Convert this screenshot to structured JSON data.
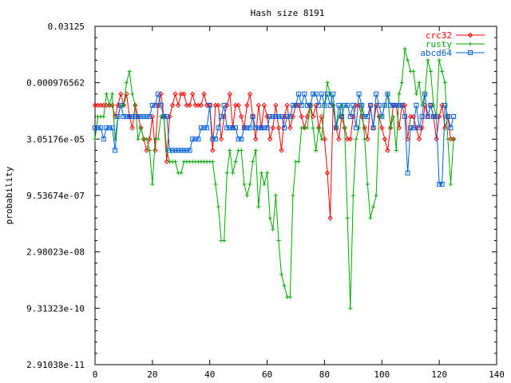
{
  "chart_data": {
    "type": "line",
    "title": "Hash size 8191",
    "xlabel": "",
    "ylabel": "probability",
    "xlim": [
      0,
      140
    ],
    "x_ticks": [
      "0",
      "20",
      "40",
      "60",
      "80",
      "100",
      "120",
      "140"
    ],
    "ylim_log2": [
      -35,
      -5
    ],
    "y_ticks": [
      {
        "label": "0.03125",
        "log2": -5
      },
      {
        "label": "0.000976562",
        "log2": -10
      },
      {
        "label": "3.05176e-05",
        "log2": -15
      },
      {
        "label": "9.53674e-07",
        "log2": -20
      },
      {
        "label": "2.98023e-08",
        "log2": -25
      },
      {
        "label": "9.31323e-10",
        "log2": -30
      },
      {
        "label": "2.91038e-11",
        "log2": -35
      }
    ],
    "y_scale": "log",
    "legend_position": "top-right",
    "grid": false,
    "series": [
      {
        "name": "crc32",
        "color": "#ff0000",
        "marker": "diamond",
        "x": [
          0,
          1,
          2,
          3,
          4,
          5,
          6,
          7,
          8,
          9,
          10,
          11,
          12,
          13,
          14,
          15,
          16,
          17,
          18,
          19,
          20,
          21,
          22,
          23,
          24,
          25,
          26,
          27,
          28,
          29,
          30,
          31,
          32,
          33,
          34,
          35,
          36,
          37,
          38,
          39,
          40,
          41,
          42,
          43,
          44,
          45,
          46,
          47,
          48,
          49,
          50,
          51,
          52,
          53,
          54,
          55,
          56,
          57,
          58,
          59,
          60,
          61,
          62,
          63,
          64,
          65,
          66,
          67,
          68,
          69,
          70,
          71,
          72,
          73,
          74,
          75,
          76,
          77,
          78,
          79,
          80,
          81,
          82,
          83,
          84,
          85,
          86,
          87,
          88,
          89,
          90,
          91,
          92,
          93,
          94,
          95,
          96,
          97,
          98,
          99,
          100,
          101,
          102,
          103,
          104,
          105,
          106,
          107,
          108,
          109,
          110,
          111,
          112,
          113,
          114,
          115,
          116,
          117,
          118,
          119,
          120,
          121,
          122,
          123,
          124,
          125
        ],
        "log2": [
          -12,
          -12,
          -12,
          -12,
          -12,
          -12,
          -12,
          -13,
          -12,
          -11,
          -12,
          -11,
          -13,
          -14,
          -12,
          -13,
          -14,
          -15,
          -16,
          -15,
          -13,
          -16,
          -12,
          -11,
          -13,
          -17,
          -13,
          -12,
          -11,
          -12,
          -11,
          -11,
          -12,
          -12,
          -11,
          -12,
          -12,
          -12,
          -11,
          -12,
          -12,
          -16,
          -12,
          -12,
          -15,
          -13,
          -12,
          -11,
          -14,
          -12,
          -12,
          -13,
          -14,
          -12,
          -11,
          -13,
          -15,
          -12,
          -14,
          -12,
          -13,
          -15,
          -14,
          -12,
          -14,
          -16,
          -13,
          -12,
          -14,
          -13,
          -12,
          -12,
          -13,
          -14,
          -13,
          -12,
          -13,
          -12,
          -14,
          -13,
          -15,
          -18,
          -22,
          -12,
          -14,
          -15,
          -13,
          -14,
          -15,
          -15,
          -13,
          -12,
          -12,
          -13,
          -14,
          -15,
          -12,
          -14,
          -12,
          -13,
          -14,
          -15,
          -16,
          -14,
          -12,
          -12,
          -14,
          -12,
          -12,
          -15,
          -13,
          -13,
          -14,
          -15,
          -14,
          -12,
          -13,
          -12,
          -13,
          -15,
          -13,
          -12,
          -14,
          -13,
          -15,
          -15
        ]
      },
      {
        "name": "rusty",
        "color": "#00aa00",
        "marker": "plus",
        "x": [
          0,
          1,
          2,
          3,
          4,
          5,
          6,
          7,
          8,
          9,
          10,
          11,
          12,
          13,
          14,
          15,
          16,
          17,
          18,
          19,
          20,
          21,
          22,
          23,
          24,
          25,
          26,
          27,
          28,
          29,
          30,
          31,
          32,
          33,
          34,
          35,
          36,
          37,
          38,
          39,
          40,
          41,
          42,
          43,
          44,
          45,
          46,
          47,
          48,
          49,
          50,
          51,
          52,
          53,
          54,
          55,
          56,
          57,
          58,
          59,
          60,
          61,
          62,
          63,
          64,
          65,
          66,
          67,
          68,
          69,
          70,
          71,
          72,
          73,
          74,
          75,
          76,
          77,
          78,
          79,
          80,
          81,
          82,
          83,
          84,
          85,
          86,
          87,
          88,
          89,
          90,
          91,
          92,
          93,
          94,
          95,
          96,
          97,
          98,
          99,
          100,
          101,
          102,
          103,
          104,
          105,
          106,
          107,
          108,
          109,
          110,
          111,
          112,
          113,
          114,
          115,
          116,
          117,
          118,
          119,
          120,
          121,
          122,
          123,
          124,
          125
        ],
        "log2": [
          -15,
          -13,
          -13,
          -13,
          -11,
          -12,
          -11,
          -15,
          -13,
          -12,
          -12,
          -10,
          -9,
          -11,
          -12,
          -15,
          -14,
          -15,
          -15,
          -16,
          -19,
          -15,
          -15,
          -13,
          -13,
          -16,
          -17,
          -17,
          -17,
          -18,
          -18,
          -17,
          -17,
          -17,
          -17,
          -17,
          -17,
          -17,
          -17,
          -17,
          -17,
          -17,
          -19,
          -21,
          -24,
          -24,
          -18,
          -16,
          -18,
          -17,
          -16,
          -16,
          -19,
          -20,
          -19,
          -17,
          -16,
          -21,
          -18,
          -19,
          -18,
          -22,
          -23,
          -20,
          -24,
          -27,
          -28,
          -29,
          -29,
          -20,
          -17,
          -17,
          -14,
          -14,
          -14,
          -12,
          -14,
          -16,
          -14,
          -15,
          -12,
          -10,
          -11,
          -12,
          -14,
          -13,
          -12,
          -14,
          -22,
          -30,
          -20,
          -15,
          -14,
          -12,
          -15,
          -19,
          -22,
          -21,
          -20,
          -13,
          -13,
          -12,
          -11,
          -14,
          -13,
          -16,
          -11,
          -10,
          -7,
          -8,
          -9,
          -9,
          -11,
          -10,
          -12,
          -11,
          -8,
          -9,
          -12,
          -13,
          -8,
          -9,
          -10,
          -15,
          -19,
          -15
        ]
      },
      {
        "name": "abcd64",
        "color": "#0060dd",
        "marker": "square",
        "x": [
          0,
          1,
          2,
          3,
          4,
          5,
          6,
          7,
          8,
          9,
          10,
          11,
          12,
          13,
          14,
          15,
          16,
          17,
          18,
          19,
          20,
          21,
          22,
          23,
          24,
          25,
          26,
          27,
          28,
          29,
          30,
          31,
          32,
          33,
          34,
          35,
          36,
          37,
          38,
          39,
          40,
          41,
          42,
          43,
          44,
          45,
          46,
          47,
          48,
          49,
          50,
          51,
          52,
          53,
          54,
          55,
          56,
          57,
          58,
          59,
          60,
          61,
          62,
          63,
          64,
          65,
          66,
          67,
          68,
          69,
          70,
          71,
          72,
          73,
          74,
          75,
          76,
          77,
          78,
          79,
          80,
          81,
          82,
          83,
          84,
          85,
          86,
          87,
          88,
          89,
          90,
          91,
          92,
          93,
          94,
          95,
          96,
          97,
          98,
          99,
          100,
          101,
          102,
          103,
          104,
          105,
          106,
          107,
          108,
          109,
          110,
          111,
          112,
          113,
          114,
          115,
          116,
          117,
          118,
          119,
          120,
          121,
          122,
          123,
          124,
          125
        ],
        "log2": [
          -14,
          -14,
          -14,
          -15,
          -14,
          -14,
          -14,
          -16,
          -13,
          -12,
          -13,
          -13,
          -13,
          -13,
          -13,
          -13,
          -13,
          -13,
          -13,
          -13,
          -12,
          -12,
          -11,
          -12,
          -13,
          -13,
          -16,
          -16,
          -16,
          -16,
          -16,
          -16,
          -16,
          -16,
          -15,
          -15,
          -15,
          -14,
          -14,
          -14,
          -12,
          -15,
          -15,
          -14,
          -13,
          -12,
          -14,
          -14,
          -14,
          -14,
          -15,
          -15,
          -14,
          -14,
          -14,
          -13,
          -14,
          -14,
          -14,
          -14,
          -14,
          -13,
          -13,
          -13,
          -13,
          -13,
          -14,
          -13,
          -13,
          -12,
          -12,
          -11,
          -12,
          -11,
          -12,
          -12,
          -11,
          -11,
          -12,
          -11,
          -12,
          -11,
          -12,
          -11,
          -14,
          -12,
          -13,
          -12,
          -12,
          -13,
          -12,
          -14,
          -11,
          -12,
          -13,
          -13,
          -12,
          -14,
          -11,
          -12,
          -13,
          -12,
          -11,
          -12,
          -12,
          -12,
          -12,
          -12,
          -13,
          -18,
          -14,
          -14,
          -12,
          -14,
          -13,
          -11,
          -13,
          -12,
          -13,
          -13,
          -19,
          -19,
          -12,
          -13,
          -14,
          -13
        ]
      }
    ]
  }
}
